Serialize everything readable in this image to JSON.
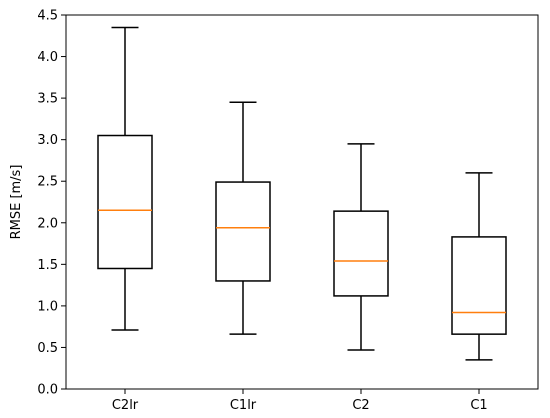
{
  "chart_data": {
    "type": "box",
    "title": "",
    "xlabel": "",
    "ylabel": "RMSE [m/s]",
    "ylim": [
      0,
      4.5
    ],
    "yticks": [
      "0.0",
      "0.5",
      "1.0",
      "1.5",
      "2.0",
      "2.5",
      "3.0",
      "3.5",
      "4.0",
      "4.5"
    ],
    "categories": [
      "C2lr",
      "C1lr",
      "C2",
      "C1"
    ],
    "boxes": [
      {
        "label": "C2lr",
        "whisker_low": 0.71,
        "q1": 1.45,
        "median": 2.15,
        "q3": 3.05,
        "whisker_high": 4.35
      },
      {
        "label": "C1lr",
        "whisker_low": 0.66,
        "q1": 1.3,
        "median": 1.94,
        "q3": 2.49,
        "whisker_high": 3.45
      },
      {
        "label": "C2",
        "whisker_low": 0.47,
        "q1": 1.12,
        "median": 1.54,
        "q3": 2.14,
        "whisker_high": 2.95
      },
      {
        "label": "C1",
        "whisker_low": 0.35,
        "q1": 0.66,
        "median": 0.92,
        "q3": 1.83,
        "whisker_high": 2.6
      }
    ],
    "grid": false,
    "colors": {
      "box": "#000000",
      "median": "#ff7f0e"
    }
  }
}
